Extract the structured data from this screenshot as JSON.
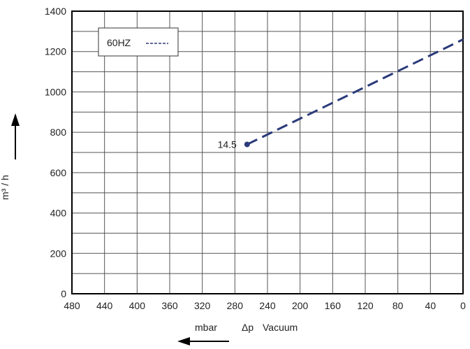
{
  "chart_data": {
    "type": "line",
    "xlabel_unit": "mbar",
    "xlabel_symbol": "Δp",
    "xlabel_text": "Vacuum",
    "ylabel": "m³ / h",
    "x_ticks": [
      480,
      440,
      400,
      360,
      320,
      280,
      240,
      200,
      160,
      120,
      80,
      40,
      0
    ],
    "y_ticks": [
      0,
      200,
      400,
      600,
      800,
      1000,
      1200,
      1400
    ],
    "xlim": [
      480,
      0
    ],
    "ylim": [
      0,
      1400
    ],
    "grid": true,
    "x_minor_step": 40,
    "y_minor_step": 100,
    "legend": {
      "label": "60HZ",
      "position": "top-left"
    },
    "series": [
      {
        "name": "60HZ",
        "style": "dashed",
        "color": "#2b3a7a",
        "x": [
          265,
          0
        ],
        "y": [
          740,
          1260
        ]
      }
    ],
    "annotations": [
      {
        "text": "14.5",
        "x": 265,
        "y": 740
      }
    ]
  }
}
